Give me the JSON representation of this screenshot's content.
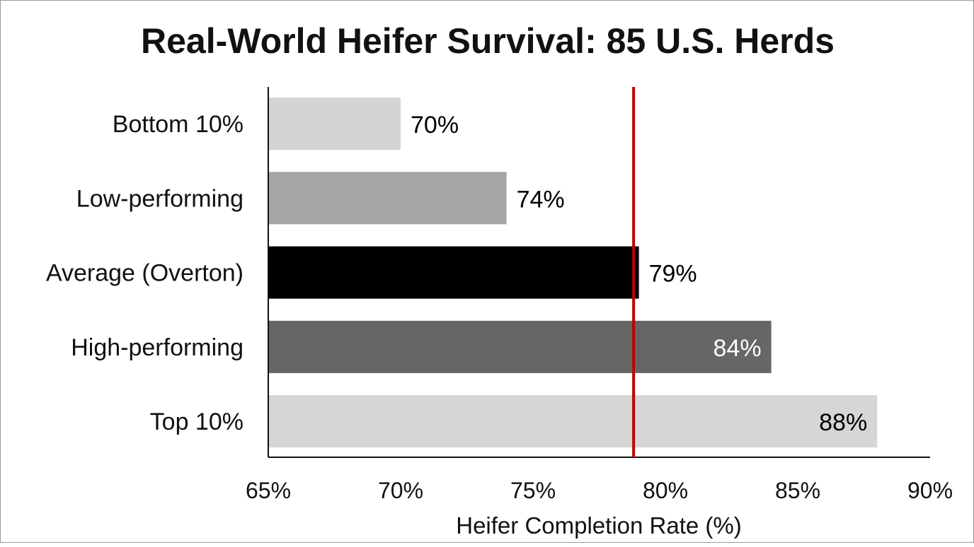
{
  "chart_data": {
    "type": "bar",
    "orientation": "horizontal",
    "title": "Real-World Heifer Survival: 85 U.S. Herds",
    "xlabel": "Heifer Completion Rate (%)",
    "ylabel": "",
    "xlim": [
      65,
      90
    ],
    "xticks": [
      65,
      70,
      75,
      80,
      85,
      90
    ],
    "xtick_labels": [
      "65%",
      "70%",
      "75%",
      "80%",
      "85%",
      "90%"
    ],
    "categories": [
      "Bottom 10%",
      "Low-performing",
      "Average (Overton)",
      "High-performing",
      "Top 10%"
    ],
    "values": [
      70,
      74,
      79,
      84,
      88
    ],
    "data_labels": [
      "70%",
      "74%",
      "79%",
      "84%",
      "88%"
    ],
    "bar_colors": [
      "#d4d4d4",
      "#a6a6a6",
      "#000000",
      "#666666",
      "#d6d6d6"
    ],
    "label_colors": [
      "#000000",
      "#000000",
      "#000000",
      "#ffffff",
      "#000000"
    ],
    "label_inside": [
      false,
      false,
      false,
      true,
      true
    ],
    "reference_line": {
      "value": 78.8,
      "color": "#c00000"
    },
    "grid": false,
    "legend": "none"
  }
}
